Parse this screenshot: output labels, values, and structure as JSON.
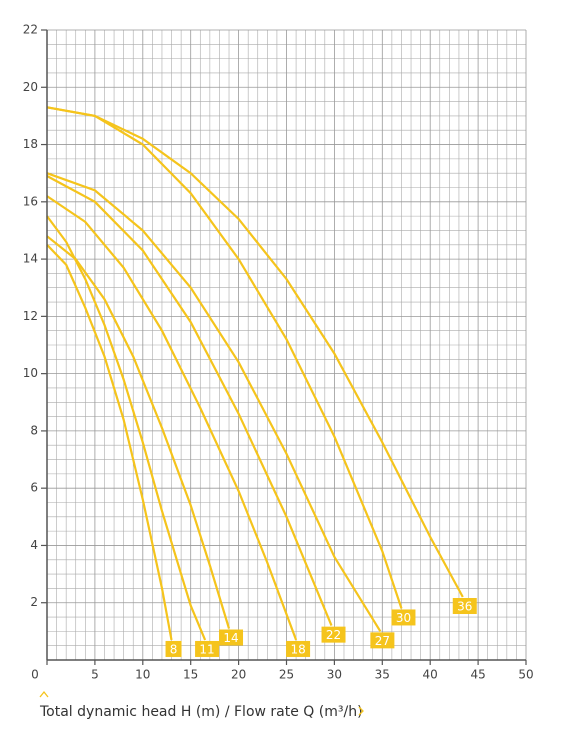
{
  "chart_data": {
    "type": "line",
    "x_label": "Total dynamic head H (m) / Flow rate Q (m³/h)",
    "xlim": [
      0,
      50
    ],
    "xticks": [
      0,
      5,
      10,
      15,
      20,
      25,
      30,
      35,
      40,
      45,
      50
    ],
    "ylim": [
      0,
      22
    ],
    "yticks": [
      2,
      4,
      6,
      8,
      10,
      12,
      14,
      16,
      18,
      20,
      22
    ],
    "grid": true,
    "series": [
      {
        "name": "8",
        "color": "#f5c41c",
        "x": [
          0,
          2,
          4,
          6,
          8,
          10,
          12,
          13
        ],
        "values": [
          14.5,
          13.8,
          12.3,
          10.6,
          8.4,
          5.6,
          2.5,
          0.7
        ]
      },
      {
        "name": "11",
        "color": "#f5c41c",
        "x": [
          0,
          2,
          4,
          6,
          8,
          10,
          12,
          14,
          15,
          16.5
        ],
        "values": [
          15.5,
          14.6,
          13.3,
          11.7,
          9.8,
          7.6,
          5.2,
          3.0,
          1.9,
          0.7
        ]
      },
      {
        "name": "14",
        "color": "#f5c41c",
        "x": [
          0,
          3,
          6,
          9,
          12,
          15,
          17,
          19
        ],
        "values": [
          14.8,
          14,
          12.6,
          10.6,
          8.1,
          5.4,
          3.3,
          1.1
        ]
      },
      {
        "name": "18",
        "color": "#f5c41c",
        "x": [
          0,
          4,
          8,
          12,
          16,
          20,
          23,
          26
        ],
        "values": [
          16.2,
          15.3,
          13.7,
          11.5,
          8.8,
          5.9,
          3.4,
          0.7
        ]
      },
      {
        "name": "22",
        "color": "#f5c41c",
        "x": [
          0,
          5,
          10,
          15,
          20,
          25,
          29.7
        ],
        "values": [
          16.9,
          16,
          14.3,
          11.8,
          8.6,
          5,
          1.2
        ]
      },
      {
        "name": "27",
        "color": "#f5c41c",
        "x": [
          0,
          5,
          10,
          15,
          20,
          25,
          30,
          34.8
        ],
        "values": [
          17,
          16.4,
          15,
          13,
          10.4,
          7.2,
          3.6,
          1.0
        ]
      },
      {
        "name": "30",
        "color": "#f5c41c",
        "x": [
          0,
          5,
          10,
          15,
          20,
          25,
          30,
          35,
          37
        ],
        "values": [
          19.3,
          19,
          18,
          16.3,
          14,
          11.2,
          7.8,
          3.8,
          1.8
        ]
      },
      {
        "name": "36",
        "color": "#f5c41c",
        "x": [
          0,
          5,
          10,
          15,
          20,
          25,
          30,
          35,
          40,
          43.4
        ],
        "values": [
          19.3,
          19,
          18.2,
          17,
          15.4,
          13.3,
          10.7,
          7.6,
          4.3,
          2.2
        ]
      }
    ]
  }
}
